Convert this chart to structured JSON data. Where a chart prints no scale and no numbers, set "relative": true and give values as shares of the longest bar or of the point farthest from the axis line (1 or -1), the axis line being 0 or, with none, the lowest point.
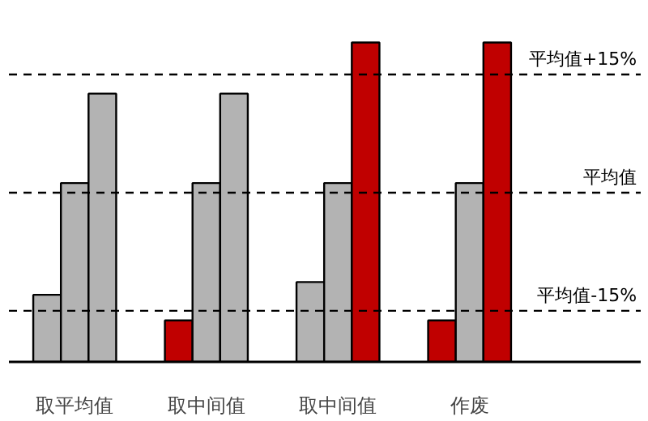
{
  "chart_data": {
    "type": "bar",
    "relative": true,
    "grid": false,
    "categories": [
      "取平均值",
      "取中间值",
      "取中间值",
      "作废"
    ],
    "series": [
      {
        "colors": [
          "#b3b3b3",
          "#c00000",
          "#b3b3b3",
          "#c00000"
        ],
        "values": [
          0.21,
          0.13,
          0.25,
          0.13
        ]
      },
      {
        "colors": [
          "#b3b3b3",
          "#b3b3b3",
          "#b3b3b3",
          "#b3b3b3"
        ],
        "values": [
          0.56,
          0.56,
          0.56,
          0.56
        ]
      },
      {
        "colors": [
          "#b3b3b3",
          "#b3b3b3",
          "#c00000",
          "#c00000"
        ],
        "values": [
          0.84,
          0.84,
          1,
          1
        ]
      }
    ],
    "ref_lines": [
      {
        "axis": "y",
        "value": 0.9,
        "label": "平均值+15%",
        "line_style": "dashed"
      },
      {
        "axis": "y",
        "value": 0.53,
        "label": "平均值",
        "line_style": "dashed"
      },
      {
        "axis": "y",
        "value": 0.16,
        "label": "平均值-15%",
        "line_style": "dashed"
      }
    ]
  }
}
